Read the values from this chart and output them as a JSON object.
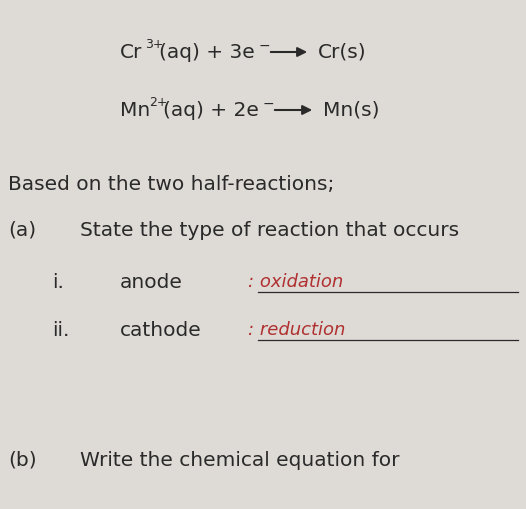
{
  "bg_color": "#dedad6",
  "text_color": "#2a2a2a",
  "handwriting_color": "#b03030",
  "figsize": [
    5.26,
    5.09
  ],
  "dpi": 100,
  "based_text": "Based on the two half-reactions;",
  "a_label": "(a)",
  "a_text": "State the type of reaction that occurs",
  "i_label": "i.",
  "i_text": "anode",
  "i_answer": ": oxidation",
  "ii_label": "ii.",
  "ii_text": "cathode",
  "ii_answer": ": reduction",
  "b_label": "(b)",
  "b_text": "Write the chemical equation for"
}
